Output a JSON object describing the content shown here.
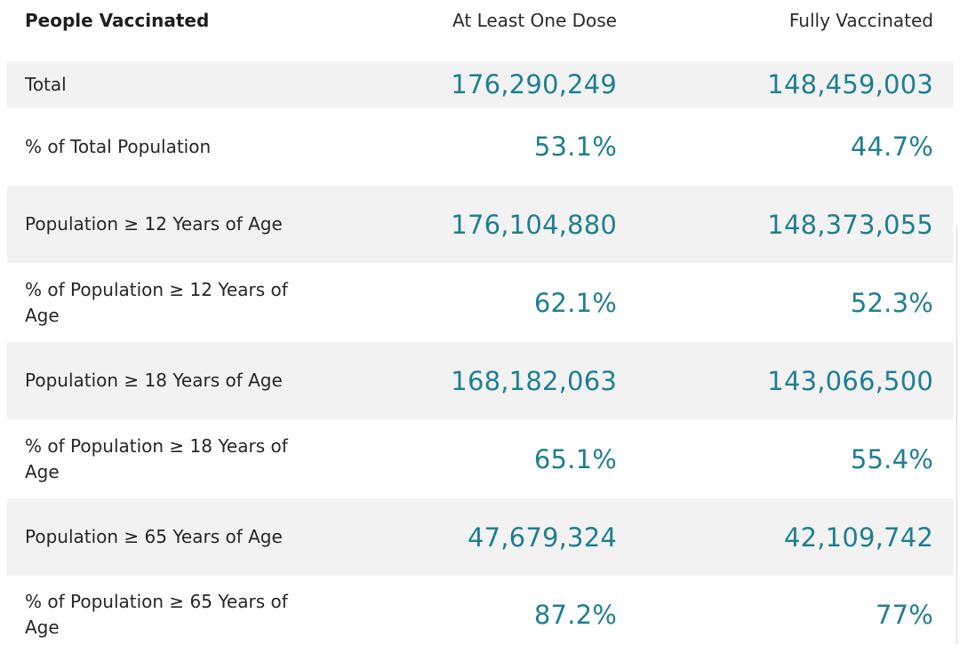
{
  "header": {
    "label": "People Vaccinated",
    "col_a": "At Least One Dose",
    "col_b": "Fully Vaccinated"
  },
  "rows": [
    {
      "label": "Total",
      "dose1": "176,290,249",
      "full": "148,459,003"
    },
    {
      "label": "% of Total Population",
      "dose1": "53.1%",
      "full": "44.7%"
    },
    {
      "label": "Population ≥ 12 Years of Age",
      "dose1": "176,104,880",
      "full": "148,373,055"
    },
    {
      "label": "% of Population ≥ 12 Years of Age",
      "dose1": "62.1%",
      "full": "52.3%"
    },
    {
      "label": "Population ≥ 18 Years of Age",
      "dose1": "168,182,063",
      "full": "143,066,500"
    },
    {
      "label": "% of Population ≥ 18 Years of Age",
      "dose1": "65.1%",
      "full": "55.4%"
    },
    {
      "label": "Population ≥ 65 Years of Age",
      "dose1": "47,679,324",
      "full": "42,109,742"
    },
    {
      "label": "% of Population ≥ 65 Years of Age",
      "dose1": "87.2%",
      "full": "77%"
    }
  ],
  "colors": {
    "value_text": "#1f7f91",
    "row_shade": "#f2f2f2",
    "label_text": "#262626"
  }
}
